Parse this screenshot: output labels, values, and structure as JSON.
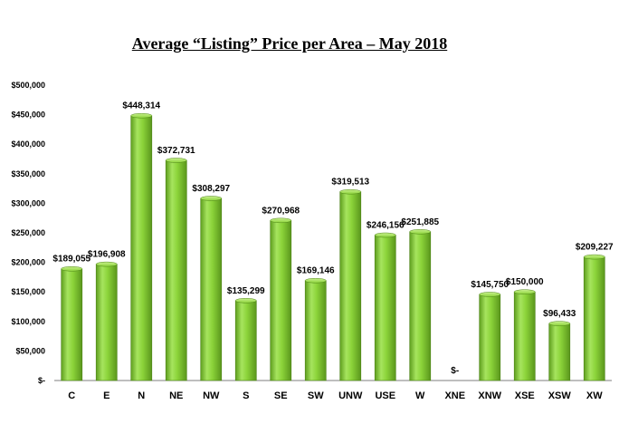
{
  "chart_data": {
    "type": "bar",
    "title": "Average “Listing” Price per Area – May 2018",
    "categories": [
      "C",
      "E",
      "N",
      "NE",
      "NW",
      "S",
      "SE",
      "SW",
      "UNW",
      "USE",
      "W",
      "XNE",
      "XNW",
      "XSE",
      "XSW",
      "XW"
    ],
    "values": [
      189055,
      196908,
      448314,
      372731,
      308297,
      135299,
      270968,
      169146,
      319513,
      246156,
      251885,
      0,
      145750,
      150000,
      96433,
      209227
    ],
    "data_labels": [
      "$189,055",
      "$196,908",
      "$448,314",
      "$372,731",
      "$308,297",
      "$135,299",
      "$270,968",
      "$169,146",
      "$319,513",
      "$246,156",
      "$251,885",
      "$-",
      "$145,750",
      "$150,000",
      "$96,433",
      "$209,227"
    ],
    "y_ticks": [
      0,
      50000,
      100000,
      150000,
      200000,
      250000,
      300000,
      350000,
      400000,
      450000,
      500000
    ],
    "y_tick_labels": [
      "$-",
      "$50,000",
      "$100,000",
      "$150,000",
      "$200,000",
      "$250,000",
      "$300,000",
      "$350,000",
      "$400,000",
      "$450,000",
      "$500,000"
    ],
    "ylim": [
      0,
      500000
    ],
    "xlabel": "",
    "ylabel": "",
    "grid": false,
    "legend": "none",
    "bar_color": "#8cd43a"
  }
}
